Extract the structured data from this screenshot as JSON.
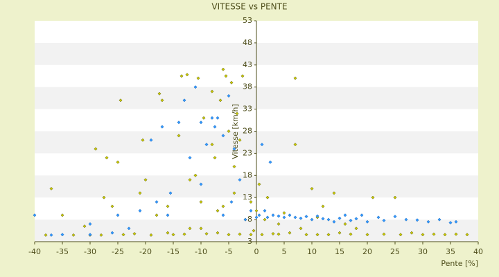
{
  "chart_data": {
    "type": "scatter",
    "title": "VITESSE vs PENTE",
    "x_label": "Pente [%]",
    "y_label": "Vitesse [km/h]",
    "xlim": [
      -40,
      40
    ],
    "xticks": [
      -40,
      -35,
      -30,
      -25,
      -20,
      -15,
      -10,
      -5,
      0,
      5,
      10,
      15,
      20,
      25,
      30,
      35,
      40
    ],
    "ylim": [
      3,
      53
    ],
    "yticks": [
      3,
      8,
      13,
      18,
      23,
      28,
      33,
      38,
      43,
      48,
      53
    ],
    "banded_grid": true,
    "series": [
      {
        "color": "#c8c800",
        "x": [
          -38,
          -37,
          -35,
          -33,
          -31,
          -30,
          -29,
          -28,
          -27.5,
          -27,
          -26,
          -25,
          -24.5,
          -24,
          -22,
          -21,
          -20.5,
          -20,
          -19,
          -18,
          -17.5,
          -17,
          -16,
          -15,
          -14,
          -13.5,
          -13,
          -12.5,
          -12,
          -11,
          -10.5,
          -10,
          -9.5,
          -9,
          -8,
          -7.5,
          -7,
          -6.5,
          -6,
          -5.5,
          -5,
          -4.5,
          -4,
          -3.5,
          -3,
          -2.5,
          -2,
          -1,
          -0.5,
          0,
          0.5,
          1,
          1.5,
          2,
          3,
          4,
          5,
          6,
          7,
          7,
          8,
          9,
          10,
          11,
          12,
          13,
          14,
          15,
          16,
          17,
          18,
          20,
          21,
          23,
          25,
          26,
          28,
          30,
          32,
          34,
          36,
          38,
          -8,
          -4,
          -3,
          -6,
          -12,
          -16,
          -10,
          -7,
          -5,
          -1,
          4,
          11
        ],
        "values": [
          4.5,
          15,
          9,
          4.5,
          6.5,
          4.5,
          24,
          4.5,
          13,
          22,
          11,
          21,
          35,
          4.6,
          4.8,
          14,
          26,
          17,
          4.5,
          9,
          36.5,
          35,
          11,
          4.6,
          27,
          40.5,
          4.7,
          40.8,
          6,
          18,
          40,
          12,
          31,
          4.8,
          37,
          22,
          10,
          35,
          42,
          40.5,
          28,
          39,
          14,
          32,
          4.7,
          40.5,
          8,
          12,
          5.5,
          10,
          16,
          4.6,
          8,
          13,
          4.8,
          7,
          9.5,
          5,
          40,
          25,
          6,
          4.6,
          15,
          8.5,
          11,
          4.6,
          14,
          5,
          7,
          4.7,
          6,
          4.6,
          13,
          4.7,
          13,
          4.6,
          5,
          4.6,
          4.7,
          4.6,
          4.7,
          4.6,
          25,
          20,
          26,
          11,
          17,
          5,
          6,
          5,
          4.6,
          4.6,
          4.7,
          4.6
        ]
      },
      {
        "color": "#3399ff",
        "x": [
          -40,
          -35,
          -30,
          -26,
          -25,
          -23,
          -21,
          -19,
          -18,
          -17,
          -16,
          -15.5,
          -14,
          -13,
          -12,
          -11,
          -10,
          -10,
          -9,
          -8,
          -7.5,
          -7,
          -6,
          -6,
          -5,
          -4.5,
          -4,
          -3,
          -2,
          -1,
          0,
          0.5,
          1,
          1.5,
          2,
          2.5,
          3,
          4,
          5,
          6,
          7,
          8,
          9,
          10,
          11,
          12,
          13,
          14,
          15,
          16,
          17,
          18,
          19,
          20,
          22,
          23,
          25,
          27,
          29,
          31,
          33,
          35,
          36,
          -30,
          -37
        ],
        "values": [
          9,
          4.6,
          7,
          5,
          9,
          6,
          10,
          26,
          12,
          29,
          9,
          14,
          30,
          35,
          22,
          38,
          30,
          16,
          25,
          31,
          29,
          31,
          27,
          9,
          36,
          12,
          24,
          17,
          8,
          10,
          8.5,
          9,
          25,
          10,
          8.5,
          21,
          9,
          8.8,
          8.5,
          9,
          8.5,
          8.3,
          8.7,
          8,
          8.8,
          8.2,
          8,
          7.5,
          8.3,
          9,
          7.8,
          8.2,
          9,
          7.5,
          8.5,
          7.8,
          8.7,
          8,
          7.9,
          7.5,
          8,
          7.3,
          7.5,
          4.6,
          4.5
        ]
      }
    ]
  }
}
